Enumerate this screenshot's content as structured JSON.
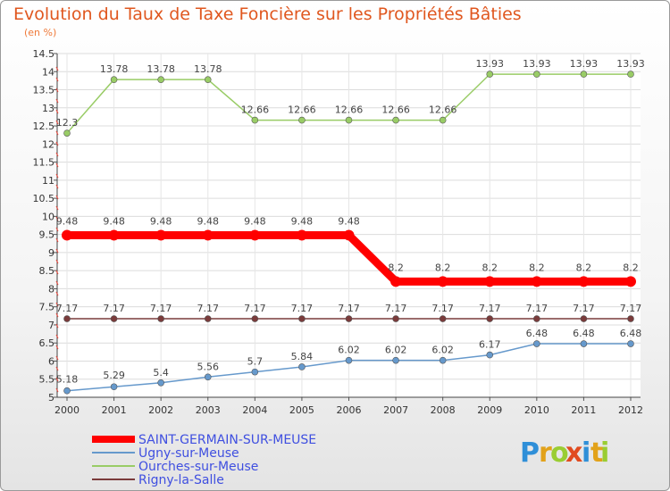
{
  "title": "Evolution du Taux de Taxe Foncière sur les Propriétés Bâties",
  "subtitle": "(en %)",
  "brand": {
    "letters": [
      "P",
      "r",
      "o",
      "x",
      "i",
      "t",
      "i"
    ],
    "colors": [
      "#2f8fd8",
      "#e2a21a",
      "#9acd32",
      "#e14b1f",
      "#2f8fd8",
      "#e2a21a",
      "#9acd32"
    ]
  },
  "chart_data": {
    "type": "line",
    "x": [
      "2000",
      "2001",
      "2002",
      "2003",
      "2004",
      "2005",
      "2006",
      "2007",
      "2008",
      "2009",
      "2010",
      "2011",
      "2012"
    ],
    "yticks": [
      "5",
      "5.5",
      "6",
      "6.5",
      "7",
      "7.5",
      "8",
      "8.5",
      "9",
      "9.5",
      "10",
      "10.5",
      "11",
      "11.5",
      "12",
      "12.5",
      "13",
      "13.5",
      "14",
      "14.5"
    ],
    "ylim": [
      5,
      14.5
    ],
    "grid": true,
    "legend_position": "bottom-left",
    "series": [
      {
        "name": "SAINT-GERMAIN-SUR-MEUSE",
        "color": "#ff0000",
        "width": 9,
        "values": [
          9.48,
          9.48,
          9.48,
          9.48,
          9.48,
          9.48,
          9.48,
          8.2,
          8.2,
          8.2,
          8.2,
          8.2,
          8.2
        ],
        "labels": [
          "9.48",
          "9.48",
          "9.48",
          "9.48",
          "9.48",
          "9.48",
          "9.48",
          "8.2",
          "8.2",
          "8.2",
          "8.2",
          "8.2",
          "8.2"
        ]
      },
      {
        "name": "Ugny-sur-Meuse",
        "color": "#6699cc",
        "width": 1.5,
        "values": [
          5.18,
          5.29,
          5.4,
          5.56,
          5.7,
          5.84,
          6.02,
          6.02,
          6.02,
          6.17,
          6.48,
          6.48,
          6.48
        ],
        "labels": [
          "5.18",
          "5.29",
          "5.4",
          "5.56",
          "5.7",
          "5.84",
          "6.02",
          "6.02",
          "6.02",
          "6.17",
          "6.48",
          "6.48",
          "6.48"
        ]
      },
      {
        "name": "Ourches-sur-Meuse",
        "color": "#99cc66",
        "width": 1.5,
        "values": [
          12.3,
          13.78,
          13.78,
          13.78,
          12.66,
          12.66,
          12.66,
          12.66,
          12.66,
          13.93,
          13.93,
          13.93,
          13.93
        ],
        "labels": [
          "12.3",
          "13.78",
          "13.78",
          "13.78",
          "12.66",
          "12.66",
          "12.66",
          "12.66",
          "12.66",
          "13.93",
          "13.93",
          "13.93",
          "13.93"
        ]
      },
      {
        "name": "Rigny-la-Salle",
        "color": "#7a3b3b",
        "width": 1.5,
        "values": [
          7.17,
          7.17,
          7.17,
          7.17,
          7.17,
          7.17,
          7.17,
          7.17,
          7.17,
          7.17,
          7.17,
          7.17,
          7.17
        ],
        "labels": [
          "7.17",
          "7.17",
          "7.17",
          "7.17",
          "7.17",
          "7.17",
          "7.17",
          "7.17",
          "7.17",
          "7.17",
          "7.17",
          "7.17",
          "7.17"
        ]
      }
    ]
  }
}
